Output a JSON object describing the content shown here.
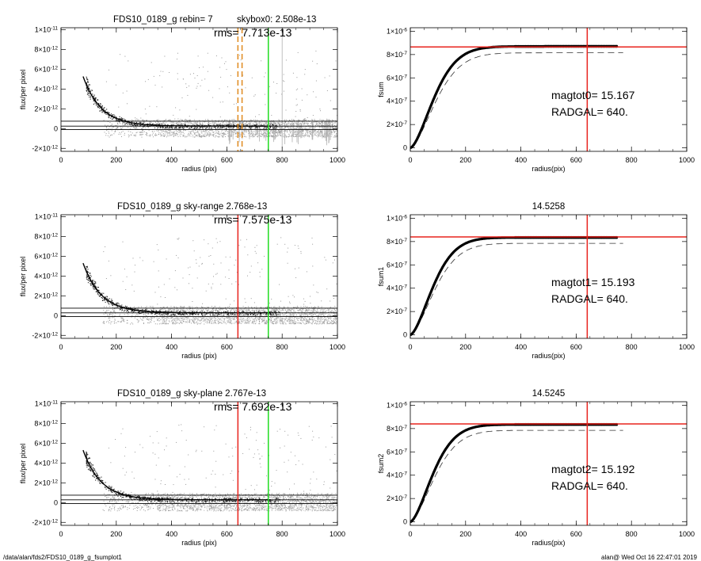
{
  "footer": {
    "path": "/data/alan/fds2/FDS10_0189_g_fsumplot1",
    "stamp": "alan@  Wed Oct 16 22:47:01 2019"
  },
  "colors": {
    "red": "#e8231d",
    "green": "#22dd22",
    "orange": "#e08a1e",
    "grey": "#9a9a9a"
  },
  "chart_data": [
    {
      "type": "scatter",
      "panel": "left-1",
      "title_main": "FDS10_0189_g rebin= 7",
      "title_extra": "skybox0:  2.508e-13",
      "rms_label": "rms= 7.713e-13",
      "xlabel": "radius (pix)",
      "ylabel": "flux/per pixel",
      "xlim": [
        0,
        1000
      ],
      "ylim": [
        -2.3e-12,
        1.02e-11
      ],
      "xticks": [
        "0",
        "200",
        "400",
        "600",
        "800",
        "1000"
      ],
      "yticks": [
        {
          "v": -2e-12,
          "m": "-2×10",
          "e": "-12"
        },
        {
          "v": 0,
          "m": "0",
          "e": ""
        },
        {
          "v": 2e-12,
          "m": "2×10",
          "e": "-12"
        },
        {
          "v": 4e-12,
          "m": "4×10",
          "e": "-12"
        },
        {
          "v": 6e-12,
          "m": "6×10",
          "e": "-12"
        },
        {
          "v": 8e-12,
          "m": "8×10",
          "e": "-12"
        },
        {
          "v": 1e-11,
          "m": "1×10",
          "e": "-11"
        }
      ],
      "profile": {
        "a": 1.72e-11,
        "r0": 65,
        "floor": 2.5e-13
      },
      "sky_lines": [
        2.508e-13,
        7.5e-13
      ],
      "vlines": [
        {
          "x": 640,
          "color": "orange",
          "style": "dashed"
        },
        {
          "x": 655,
          "color": "orange",
          "style": "dashed"
        },
        {
          "x": 750,
          "color": "green",
          "style": "solid"
        }
      ],
      "grey_spikes": true
    },
    {
      "type": "line",
      "panel": "right-1",
      "title_main": "",
      "xlabel": "radius(pix)",
      "ylabel": "fsum",
      "xlim": [
        0,
        1000
      ],
      "ylim": [
        -3e-08,
        1.03e-06
      ],
      "xticks": [
        "0",
        "200",
        "400",
        "600",
        "800",
        "1000"
      ],
      "yticks": [
        {
          "v": 0,
          "m": "0",
          "e": ""
        },
        {
          "v": 2e-07,
          "m": "2×10",
          "e": "-7"
        },
        {
          "v": 4e-07,
          "m": "4×10",
          "e": "-7"
        },
        {
          "v": 6e-07,
          "m": "6×10",
          "e": "-7"
        },
        {
          "v": 8e-07,
          "m": "8×10",
          "e": "-7"
        },
        {
          "v": 1e-06,
          "m": "1×10",
          "e": "-6"
        }
      ],
      "curve": {
        "total": 8.7e-07,
        "scale": 110
      },
      "dashed_total": 8.15e-07,
      "hline": 8.65e-07,
      "vline": 640,
      "mag_label": "magtot0=  15.167",
      "rad_label": "RADGAL=    640."
    },
    {
      "type": "scatter",
      "panel": "left-2",
      "title_main": "FDS10_0189_g sky-range  2.768e-13",
      "rms_label": "rms= 7.575e-13",
      "xlabel": "radius (pix)",
      "ylabel": "flux/per pixel",
      "xlim": [
        0,
        1000
      ],
      "ylim": [
        -2.3e-12,
        1.02e-11
      ],
      "xticks": [
        "0",
        "200",
        "400",
        "600",
        "800",
        "1000"
      ],
      "yticks": [
        {
          "v": -2e-12,
          "m": "-2×10",
          "e": "-12"
        },
        {
          "v": 0,
          "m": "0",
          "e": ""
        },
        {
          "v": 2e-12,
          "m": "2×10",
          "e": "-12"
        },
        {
          "v": 4e-12,
          "m": "4×10",
          "e": "-12"
        },
        {
          "v": 6e-12,
          "m": "6×10",
          "e": "-12"
        },
        {
          "v": 8e-12,
          "m": "8×10",
          "e": "-12"
        },
        {
          "v": 1e-11,
          "m": "1×10",
          "e": "-11"
        }
      ],
      "profile": {
        "a": 1.72e-11,
        "r0": 65,
        "floor": 2.768e-13
      },
      "sky_lines": [
        2.768e-13,
        7.5e-13
      ],
      "vlines": [
        {
          "x": 640,
          "color": "red",
          "style": "solid"
        },
        {
          "x": 750,
          "color": "green",
          "style": "solid"
        }
      ],
      "grey_spikes": false
    },
    {
      "type": "line",
      "panel": "right-2",
      "title_main": "14.5258",
      "xlabel": "radius(pix)",
      "ylabel": "fsum1",
      "xlim": [
        0,
        1000
      ],
      "ylim": [
        -3e-08,
        1.03e-06
      ],
      "xticks": [
        "0",
        "200",
        "400",
        "600",
        "800",
        "1000"
      ],
      "yticks": [
        {
          "v": 0,
          "m": "0",
          "e": ""
        },
        {
          "v": 2e-07,
          "m": "2×10",
          "e": "-7"
        },
        {
          "v": 4e-07,
          "m": "4×10",
          "e": "-7"
        },
        {
          "v": 6e-07,
          "m": "6×10",
          "e": "-7"
        },
        {
          "v": 8e-07,
          "m": "8×10",
          "e": "-7"
        },
        {
          "v": 1e-06,
          "m": "1×10",
          "e": "-6"
        }
      ],
      "curve": {
        "total": 8.35e-07,
        "scale": 105
      },
      "dashed_total": 7.85e-07,
      "hline": 8.4e-07,
      "vline": 640,
      "mag_label": "magtot1=  15.193",
      "rad_label": "RADGAL=    640."
    },
    {
      "type": "scatter",
      "panel": "left-3",
      "title_main": "FDS10_0189_g sky-plane  2.767e-13",
      "rms_label": "rms= 7.692e-13",
      "xlabel": "radius (pix)",
      "ylabel": "flux/per pixel",
      "xlim": [
        0,
        1000
      ],
      "ylim": [
        -2.3e-12,
        1.02e-11
      ],
      "xticks": [
        "0",
        "200",
        "400",
        "600",
        "800",
        "1000"
      ],
      "yticks": [
        {
          "v": -2e-12,
          "m": "-2×10",
          "e": "-12"
        },
        {
          "v": 0,
          "m": "0",
          "e": ""
        },
        {
          "v": 2e-12,
          "m": "2×10",
          "e": "-12"
        },
        {
          "v": 4e-12,
          "m": "4×10",
          "e": "-12"
        },
        {
          "v": 6e-12,
          "m": "6×10",
          "e": "-12"
        },
        {
          "v": 8e-12,
          "m": "8×10",
          "e": "-12"
        },
        {
          "v": 1e-11,
          "m": "1×10",
          "e": "-11"
        }
      ],
      "profile": {
        "a": 1.72e-11,
        "r0": 65,
        "floor": 2.767e-13
      },
      "sky_lines": [
        2.767e-13,
        7.5e-13
      ],
      "vlines": [
        {
          "x": 640,
          "color": "red",
          "style": "solid"
        },
        {
          "x": 750,
          "color": "green",
          "style": "solid"
        }
      ],
      "grey_spikes": false
    },
    {
      "type": "line",
      "panel": "right-3",
      "title_main": "14.5245",
      "xlabel": "radius(pix)",
      "ylabel": "fsum2",
      "xlim": [
        0,
        1000
      ],
      "ylim": [
        -3e-08,
        1.03e-06
      ],
      "xticks": [
        "0",
        "200",
        "400",
        "600",
        "800",
        "1000"
      ],
      "yticks": [
        {
          "v": 0,
          "m": "0",
          "e": ""
        },
        {
          "v": 2e-07,
          "m": "2×10",
          "e": "-7"
        },
        {
          "v": 4e-07,
          "m": "4×10",
          "e": "-7"
        },
        {
          "v": 6e-07,
          "m": "6×10",
          "e": "-7"
        },
        {
          "v": 8e-07,
          "m": "8×10",
          "e": "-7"
        },
        {
          "v": 1e-06,
          "m": "1×10",
          "e": "-6"
        }
      ],
      "curve": {
        "total": 8.35e-07,
        "scale": 105
      },
      "dashed_total": 7.85e-07,
      "hline": 8.4e-07,
      "vline": 640,
      "mag_label": "magtot2=  15.192",
      "rad_label": "RADGAL=    640."
    }
  ]
}
